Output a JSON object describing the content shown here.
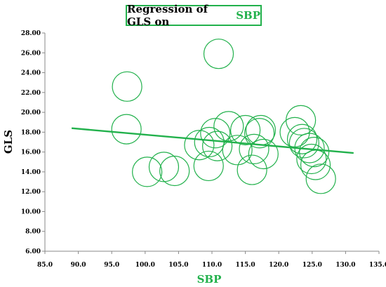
{
  "chart_data": {
    "type": "scatter",
    "title": {
      "prefix": "Regression of GLS on",
      "highlight": "SBP"
    },
    "xlabel": "SBP",
    "ylabel": "GLS",
    "xlim": [
      85,
      135
    ],
    "ylim": [
      6,
      28
    ],
    "x_ticks": [
      "85.0",
      "90.0",
      "95.0",
      "100.0",
      "105.0",
      "110.0",
      "115.0",
      "120.0",
      "125.0",
      "130.0",
      "135.0"
    ],
    "y_ticks": [
      "6.00",
      "8.00",
      "10.00",
      "12.00",
      "14.00",
      "16.00",
      "18.00",
      "20.00",
      "22.00",
      "24.00",
      "26.00",
      "28.00"
    ],
    "grid": false,
    "legend": "none",
    "marker": "open-circle",
    "points": [
      {
        "x": 97.3,
        "y": 22.6
      },
      {
        "x": 97.2,
        "y": 18.3
      },
      {
        "x": 100.3,
        "y": 14.0
      },
      {
        "x": 102.8,
        "y": 14.5
      },
      {
        "x": 104.4,
        "y": 14.1
      },
      {
        "x": 108.1,
        "y": 16.7
      },
      {
        "x": 109.5,
        "y": 14.6
      },
      {
        "x": 109.6,
        "y": 17.0
      },
      {
        "x": 110.5,
        "y": 17.9
      },
      {
        "x": 110.8,
        "y": 16.6
      },
      {
        "x": 111.0,
        "y": 25.9
      },
      {
        "x": 112.5,
        "y": 18.6
      },
      {
        "x": 113.8,
        "y": 16.2
      },
      {
        "x": 115.0,
        "y": 18.2
      },
      {
        "x": 116.0,
        "y": 14.2
      },
      {
        "x": 116.3,
        "y": 16.3
      },
      {
        "x": 117.1,
        "y": 17.9
      },
      {
        "x": 117.3,
        "y": 18.2
      },
      {
        "x": 117.7,
        "y": 15.8
      },
      {
        "x": 122.4,
        "y": 18.0
      },
      {
        "x": 123.3,
        "y": 19.2
      },
      {
        "x": 123.5,
        "y": 17.3
      },
      {
        "x": 123.8,
        "y": 16.9
      },
      {
        "x": 124.6,
        "y": 16.4
      },
      {
        "x": 124.9,
        "y": 15.3
      },
      {
        "x": 125.3,
        "y": 16.0
      },
      {
        "x": 125.5,
        "y": 14.7
      },
      {
        "x": 126.3,
        "y": 13.3
      }
    ],
    "regression_line": {
      "x": [
        89.0,
        131.2
      ],
      "y": [
        18.4,
        15.9
      ]
    },
    "colors": {
      "accent": "#22b14c",
      "text": "#000000",
      "axis": "#888888"
    }
  }
}
